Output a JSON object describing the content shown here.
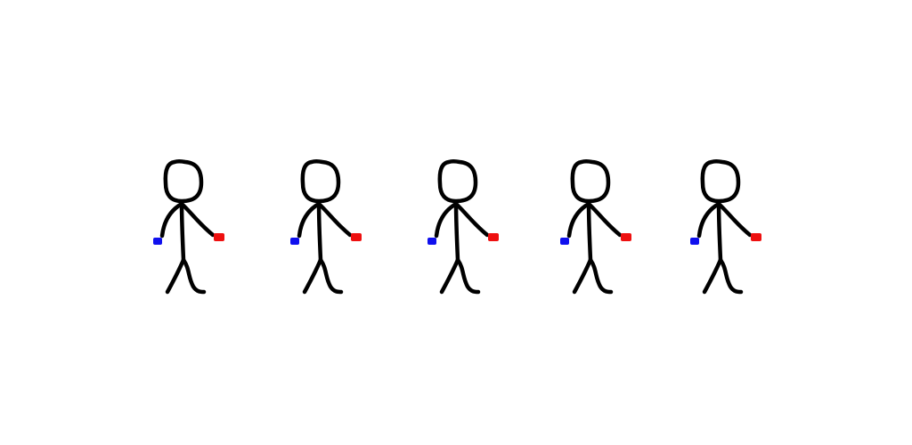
{
  "scene": {
    "figure_count": 5,
    "figures": [
      {
        "id": "figure-1",
        "left_hand_color": "#1010ee",
        "right_hand_color": "#ee1010"
      },
      {
        "id": "figure-2",
        "left_hand_color": "#1010ee",
        "right_hand_color": "#ee1010"
      },
      {
        "id": "figure-3",
        "left_hand_color": "#1010ee",
        "right_hand_color": "#ee1010"
      },
      {
        "id": "figure-4",
        "left_hand_color": "#1010ee",
        "right_hand_color": "#ee1010"
      },
      {
        "id": "figure-5",
        "left_hand_color": "#1010ee",
        "right_hand_color": "#ee1010"
      }
    ]
  },
  "colors": {
    "background": "#ffffff",
    "stroke": "#000000",
    "left_hand": "#1010ee",
    "right_hand": "#ee1010"
  }
}
